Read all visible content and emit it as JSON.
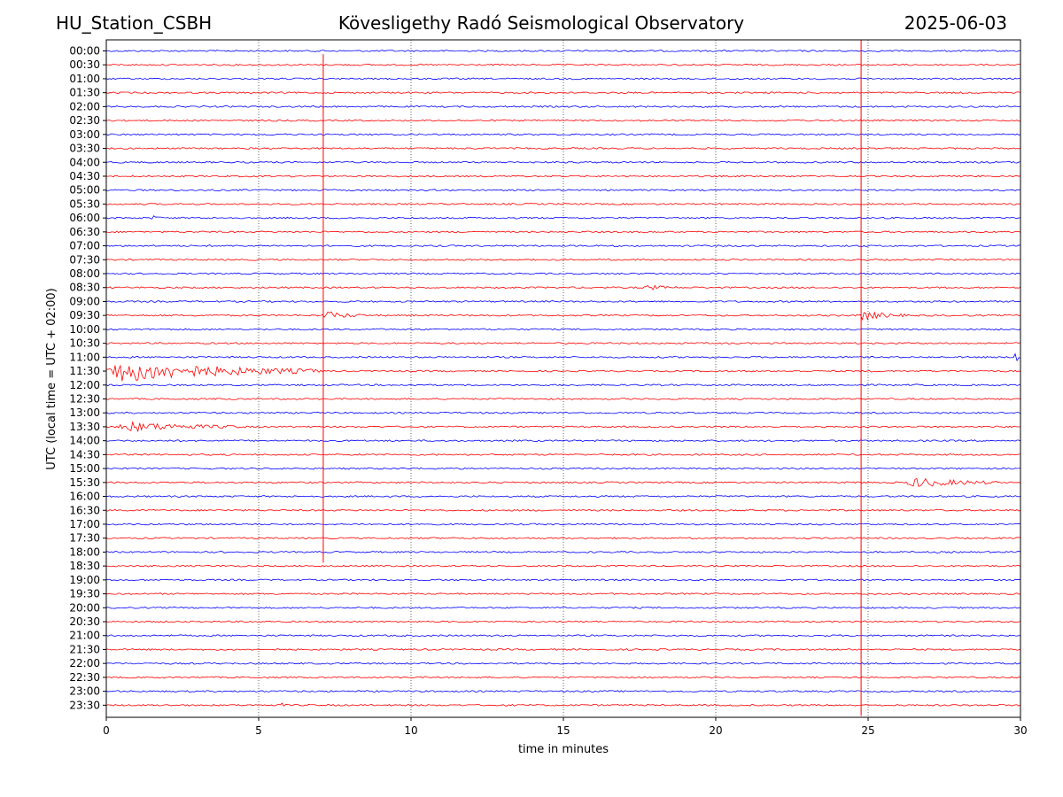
{
  "header": {
    "station": "HU_Station_CSBH",
    "title": "Kövesligethy Radó Seismological Observatory",
    "date": "2025-06-03"
  },
  "chart_data": {
    "type": "line",
    "title": "Kövesligethy Radó Seismological Observatory",
    "xlabel": "time in minutes",
    "ylabel": "UTC (local time = UTC + 02:00)",
    "xlim": [
      0,
      30
    ],
    "xticks": [
      0,
      5,
      10,
      15,
      20,
      25,
      30
    ],
    "vertical_gridlines": [
      5,
      10,
      15,
      20,
      25
    ],
    "trace_colors": [
      "#0000ff",
      "#ff0000"
    ],
    "rows": [
      "00:00",
      "00:30",
      "01:00",
      "01:30",
      "02:00",
      "02:30",
      "03:00",
      "03:30",
      "04:00",
      "04:30",
      "05:00",
      "05:30",
      "06:00",
      "06:30",
      "07:00",
      "07:30",
      "08:00",
      "08:30",
      "09:00",
      "09:30",
      "10:00",
      "10:30",
      "11:00",
      "11:30",
      "12:00",
      "12:30",
      "13:00",
      "13:30",
      "14:00",
      "14:30",
      "15:00",
      "15:30",
      "16:00",
      "16:30",
      "17:00",
      "17:30",
      "18:00",
      "18:30",
      "19:00",
      "19:30",
      "20:00",
      "20:30",
      "21:00",
      "21:30",
      "22:00",
      "22:30",
      "23:00",
      "23:30"
    ],
    "events": [
      {
        "row": "11:30",
        "start": 0.0,
        "end": 7.0,
        "amplitude": 14
      },
      {
        "row": "11:00",
        "start": 29.8,
        "end": 30.0,
        "amplitude": 10
      },
      {
        "row": "13:30",
        "start": 0.4,
        "end": 4.6,
        "amplitude": 6
      },
      {
        "row": "15:30",
        "start": 26.3,
        "end": 29.3,
        "amplitude": 6
      },
      {
        "row": "08:30",
        "start": 17.7,
        "end": 18.7,
        "amplitude": 3
      },
      {
        "row": "09:30",
        "start": 7.1,
        "end": 8.5,
        "amplitude": 5
      },
      {
        "row": "09:30",
        "start": 24.7,
        "end": 26.2,
        "amplitude": 6
      },
      {
        "row": "06:00",
        "start": 1.5,
        "end": 1.8,
        "amplitude": 3
      },
      {
        "row": "23:30",
        "start": 5.7,
        "end": 5.9,
        "amplitude": 3
      }
    ],
    "spikes": [
      {
        "x": 7.12,
        "from_row": "00:30",
        "to_row": "18:00",
        "color": "#ff0000"
      },
      {
        "x": 24.77,
        "from_row": "00:00",
        "to_row": "23:30",
        "color": "#ff0000"
      }
    ]
  }
}
